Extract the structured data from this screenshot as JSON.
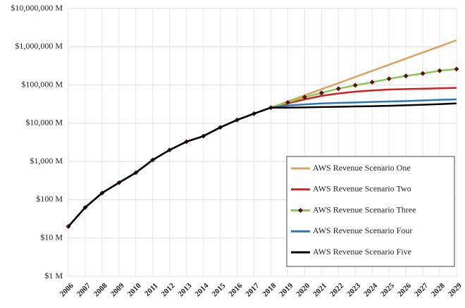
{
  "chart_data": {
    "type": "line",
    "log_y": true,
    "grid": true,
    "legend": "lower right",
    "categories": [
      "2006",
      "2007",
      "2008",
      "2009",
      "2010",
      "2011",
      "2012",
      "2013",
      "2014",
      "2015",
      "2016",
      "2017",
      "2018",
      "2019",
      "2020",
      "2021",
      "2022",
      "2023",
      "2024",
      "2025",
      "2026",
      "2027",
      "2028",
      "2029"
    ],
    "ylim": [
      1,
      10000000
    ],
    "yticks": [
      {
        "value": 1,
        "label": "$1 M"
      },
      {
        "value": 10,
        "label": "$10 M"
      },
      {
        "value": 100,
        "label": "$100 M"
      },
      {
        "value": 1000,
        "label": "$1,000 M"
      },
      {
        "value": 10000,
        "label": "$10,000 M"
      },
      {
        "value": 100000,
        "label": "$100,000 M"
      },
      {
        "value": 1000000,
        "label": "$1,000,000 M"
      },
      {
        "value": 10000000,
        "label": "$10,000,000 M"
      }
    ],
    "series": [
      {
        "name": "AWS Revenue Scenario One",
        "color": "#e0a060",
        "values": [
          20,
          63,
          150,
          280,
          510,
          1100,
          2000,
          3300,
          4600,
          7800,
          12200,
          17800,
          25600,
          37000,
          53500,
          77400,
          112000,
          162000,
          234000,
          338000,
          489000,
          707000,
          1020000,
          1480000
        ]
      },
      {
        "name": "AWS Revenue Scenario Two",
        "color": "#d42020",
        "values": [
          20,
          63,
          150,
          280,
          510,
          1100,
          2000,
          3300,
          4600,
          7800,
          12200,
          17800,
          25600,
          33000,
          42000,
          52000,
          60000,
          67000,
          72000,
          76000,
          78000,
          80000,
          82000,
          84000
        ]
      },
      {
        "name": "AWS Revenue Scenario Three",
        "color": "#8cc850",
        "marker": "#5a1010",
        "values": [
          20,
          63,
          150,
          280,
          510,
          1100,
          2000,
          3300,
          4600,
          7800,
          12200,
          17800,
          25600,
          35000,
          48000,
          62000,
          80000,
          98000,
          118000,
          145000,
          172000,
          200000,
          235000,
          260000
        ]
      },
      {
        "name": "AWS Revenue Scenario Four",
        "color": "#2878b8",
        "values": [
          20,
          63,
          150,
          280,
          510,
          1100,
          2000,
          3300,
          4600,
          7800,
          12200,
          17800,
          25600,
          29000,
          31000,
          33000,
          34000,
          35000,
          36000,
          37000,
          38000,
          39500,
          41000,
          42000
        ]
      },
      {
        "name": "AWS Revenue Scenario Five",
        "color": "#000000",
        "values": [
          20,
          63,
          150,
          280,
          510,
          1100,
          2000,
          3300,
          4600,
          7800,
          12200,
          17800,
          25600,
          25500,
          26000,
          26500,
          27000,
          27500,
          28000,
          28500,
          29500,
          30500,
          31500,
          33000
        ]
      }
    ]
  }
}
